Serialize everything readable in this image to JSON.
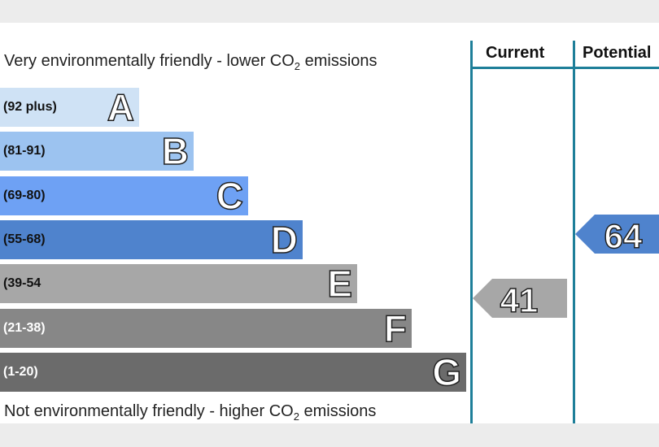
{
  "chart_data": {
    "type": "bar",
    "top_caption": {
      "text": "Very environmentally friendly - lower CO",
      "sub": "2",
      "tail": " emissions"
    },
    "bottom_caption": {
      "text": "Not environmentally friendly - higher CO",
      "sub": "2",
      "tail": " emissions"
    },
    "bands": [
      {
        "letter": "A",
        "range": "(92 plus)",
        "color": "#cfe2f5",
        "text_color": "#111111"
      },
      {
        "letter": "B",
        "range": "(81-91)",
        "color": "#9cc3f0",
        "text_color": "#111111"
      },
      {
        "letter": "C",
        "range": "(69-80)",
        "color": "#6ea1f4",
        "text_color": "#111111"
      },
      {
        "letter": "D",
        "range": "(55-68)",
        "color": "#4f83cd",
        "text_color": "#111111"
      },
      {
        "letter": "E",
        "range": "(39-54",
        "color": "#a7a7a7",
        "text_color": "#111111"
      },
      {
        "letter": "F",
        "range": "(21-38)",
        "color": "#878787",
        "text_color": "#ffffff"
      },
      {
        "letter": "G",
        "range": "(1-20)",
        "color": "#6b6b6b",
        "text_color": "#ffffff"
      }
    ],
    "columns": [
      "Current",
      "Potential"
    ],
    "current": {
      "value": 41,
      "band": "E",
      "color": "#a7a7a7"
    },
    "potential": {
      "value": 64,
      "band": "D",
      "color": "#4f83cd"
    },
    "line_color": "#1e7f99"
  }
}
